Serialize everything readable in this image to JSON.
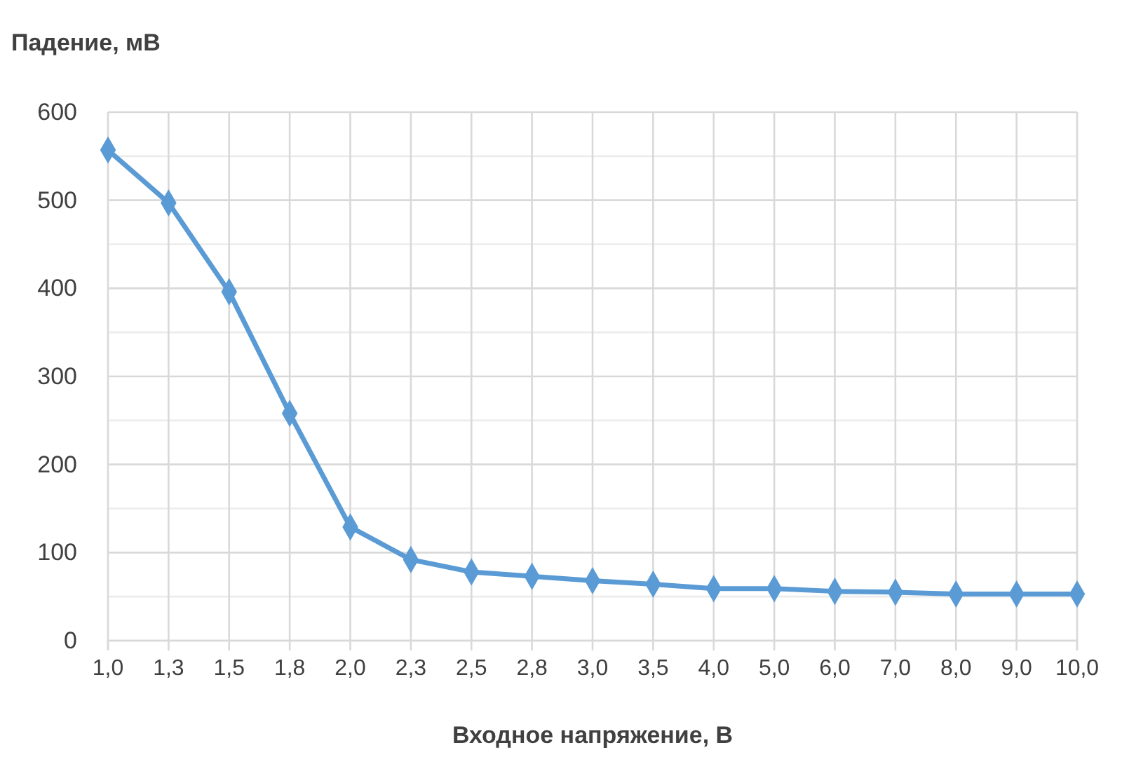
{
  "chart_data": {
    "type": "line",
    "ylabel": "Падение, мВ",
    "xlabel": "Входное напряжение, В",
    "categories": [
      "1,0",
      "1,3",
      "1,5",
      "1,8",
      "2,0",
      "2,3",
      "2,5",
      "2,8",
      "3,0",
      "3,5",
      "4,0",
      "5,0",
      "6,0",
      "7,0",
      "8,0",
      "9,0",
      "10,0"
    ],
    "series": [
      {
        "color": "#5b9bd5",
        "values": [
          557,
          497,
          396,
          258,
          129,
          92,
          78,
          73,
          68,
          64,
          59,
          59,
          56,
          55,
          53,
          53,
          53
        ]
      }
    ],
    "ylim": [
      0,
      600
    ],
    "yticks": [
      0,
      {
        "value": 50,
        "label": null
      },
      100,
      {
        "value": 150,
        "label": null
      },
      200,
      {
        "value": 250,
        "label": null
      },
      300,
      {
        "value": 350,
        "label": null
      },
      400,
      {
        "value": 450,
        "label": null
      },
      500,
      {
        "value": 550,
        "label": null
      },
      600
    ],
    "grid": true,
    "marker": "diamond",
    "line_style": "solid"
  }
}
